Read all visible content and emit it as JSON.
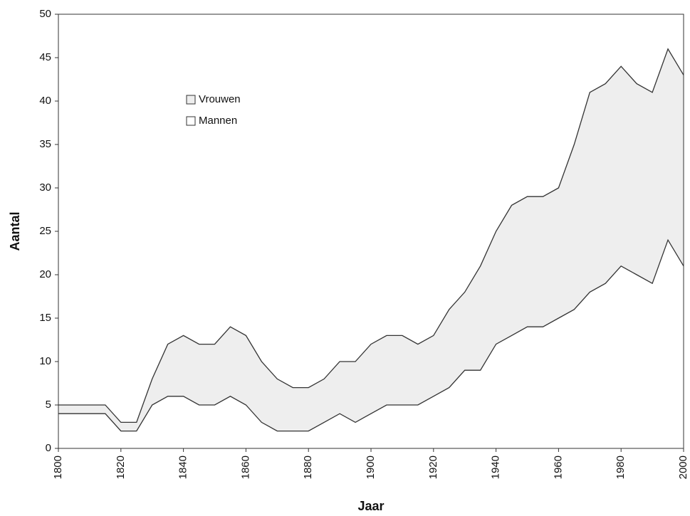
{
  "chart_data": {
    "type": "stacked_area",
    "x_label": "Jaar",
    "y_label": "Aantal",
    "x": [
      1800,
      1805,
      1810,
      1815,
      1820,
      1825,
      1830,
      1835,
      1840,
      1845,
      1850,
      1855,
      1860,
      1865,
      1870,
      1875,
      1880,
      1885,
      1890,
      1895,
      1900,
      1905,
      1910,
      1915,
      1920,
      1925,
      1930,
      1935,
      1940,
      1945,
      1950,
      1955,
      1960,
      1965,
      1970,
      1975,
      1980,
      1985,
      1990,
      1995,
      2000
    ],
    "series": [
      {
        "name": "Mannen",
        "color": "#ffffff",
        "values": [
          4,
          4,
          4,
          4,
          2,
          2,
          5,
          6,
          6,
          5,
          5,
          6,
          5,
          3,
          2,
          2,
          2,
          3,
          4,
          3,
          4,
          5,
          5,
          5,
          6,
          7,
          9,
          9,
          12,
          13,
          14,
          14,
          15,
          16,
          18,
          19,
          21,
          20,
          19,
          24,
          21
        ]
      },
      {
        "name": "Vrouwen",
        "color": "#eeeeee",
        "values": [
          1,
          1,
          1,
          1,
          1,
          1,
          3,
          6,
          7,
          7,
          7,
          8,
          8,
          7,
          6,
          5,
          5,
          5,
          6,
          7,
          8,
          8,
          8,
          7,
          7,
          9,
          9,
          12,
          13,
          15,
          15,
          15,
          15,
          19,
          23,
          23,
          23,
          22,
          22,
          22,
          22
        ]
      }
    ],
    "legend_order": [
      1,
      0
    ],
    "xlim": [
      1800,
      2000
    ],
    "xticks": [
      1800,
      1820,
      1840,
      1860,
      1880,
      1900,
      1920,
      1940,
      1960,
      1980,
      2000
    ],
    "ylim": [
      0,
      50
    ],
    "yticks": [
      0,
      5,
      10,
      15,
      20,
      25,
      30,
      35,
      40,
      45,
      50
    ],
    "grid": false
  }
}
